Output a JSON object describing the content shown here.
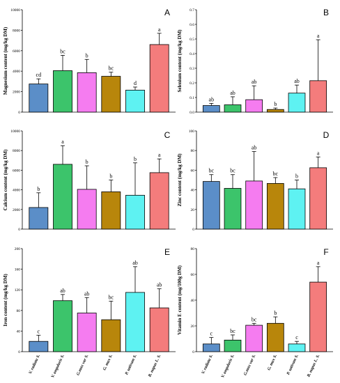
{
  "colors": [
    "#5b8ec8",
    "#3cc46b",
    "#f57cf0",
    "#b8860b",
    "#5ef2f2",
    "#f47c7c"
  ],
  "chart_data": [
    {
      "type": "bar",
      "panel": "A",
      "ylabel": "Magnesium content (mg/kg DM)",
      "ylim": [
        0,
        10000
      ],
      "yticks": [
        "0",
        "2000",
        "4000",
        "6000",
        "8000",
        "10000"
      ],
      "values": [
        2750,
        4050,
        3850,
        3500,
        2150,
        6600
      ],
      "errors": [
        500,
        1500,
        1300,
        400,
        300,
        1100
      ],
      "sig": [
        "cd",
        "bc",
        "b",
        "bc",
        "d",
        "a"
      ]
    },
    {
      "type": "bar",
      "panel": "B",
      "ylabel": "Selenium content (mg/kg DM)",
      "ylim": [
        0,
        0.7
      ],
      "yticks": [
        "0.0",
        "0.1",
        "0.2",
        "0.3",
        "0.4",
        "0.5",
        "0.6",
        "0.7"
      ],
      "values": [
        0.045,
        0.05,
        0.085,
        0.018,
        0.13,
        0.215
      ],
      "errors": [
        0.015,
        0.055,
        0.095,
        0.01,
        0.055,
        0.28
      ],
      "sig": [
        "ab",
        "ab",
        "ab",
        "b",
        "ab",
        "a"
      ]
    },
    {
      "type": "bar",
      "panel": "C",
      "ylabel": "Calcium content (mg/kg DM)",
      "ylim": [
        0,
        10000
      ],
      "yticks": [
        "0",
        "2000",
        "4000",
        "6000",
        "8000",
        "10000"
      ],
      "values": [
        2200,
        6600,
        4050,
        3800,
        3450,
        5750
      ],
      "errors": [
        1500,
        1900,
        2400,
        1200,
        3300,
        1400
      ],
      "sig": [
        "b",
        "a",
        "b",
        "b",
        "b",
        "a"
      ]
    },
    {
      "type": "bar",
      "panel": "D",
      "ylabel": "Zinc content (mg/kg DM)",
      "ylim": [
        0,
        100
      ],
      "yticks": [
        "0",
        "20",
        "40",
        "60",
        "80",
        "100"
      ],
      "values": [
        48.5,
        41.5,
        49,
        46.5,
        41,
        62.5
      ],
      "errors": [
        7,
        14,
        30,
        6,
        9,
        11
      ],
      "sig": [
        "bc",
        "bc",
        "ab",
        "bc",
        "b",
        "a"
      ]
    },
    {
      "type": "bar",
      "panel": "E",
      "ylabel": "Iron content (mg/kg DM)",
      "ylim": [
        0,
        200
      ],
      "yticks": [
        "0",
        "40",
        "80",
        "120",
        "160",
        "200"
      ],
      "values": [
        20,
        99,
        75,
        62,
        115,
        85
      ],
      "errors": [
        12,
        12,
        30,
        36,
        50,
        37
      ],
      "sig": [
        "c",
        "ab",
        "ab",
        "bc",
        "ab",
        "ab"
      ]
    },
    {
      "type": "bar",
      "panel": "F",
      "ylabel": "Vitamin E content (mg/100g DM)",
      "ylim": [
        0,
        80
      ],
      "yticks": [
        "0",
        "20",
        "40",
        "60",
        "80"
      ],
      "values": [
        6,
        9,
        20.5,
        22,
        6,
        54
      ],
      "errors": [
        5,
        4,
        1.5,
        5,
        2,
        12
      ],
      "sig": [
        "c",
        "bc",
        "bc",
        "b",
        "c",
        "a"
      ]
    }
  ],
  "categories": [
    "V. radiata S.",
    "V. angularis S.",
    "G.max var S.",
    "G. max S.",
    "P. sativum S.",
    "B. napus L. S."
  ]
}
